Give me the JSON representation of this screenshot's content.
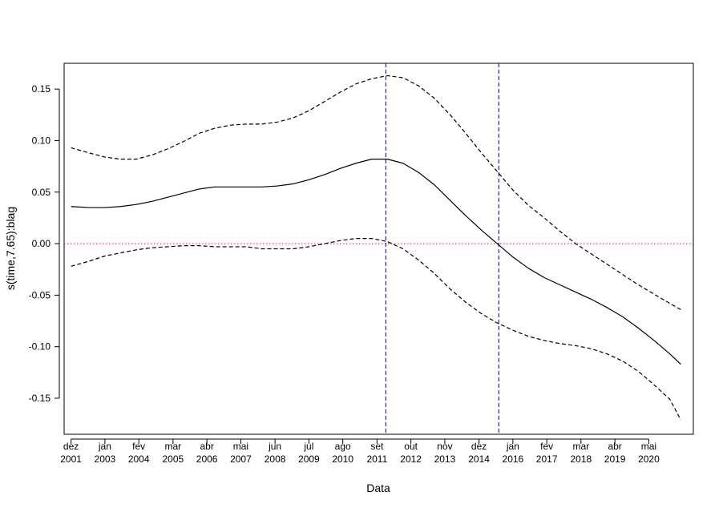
{
  "chart_data": {
    "type": "line",
    "xlabel": "Data",
    "ylabel": "s(time,7.65):blag",
    "xlim": [
      2001.7,
      2021.75
    ],
    "ylim": [
      -0.185,
      0.175
    ],
    "y_ticks": [
      0.15,
      0.1,
      0.05,
      0.0,
      -0.05,
      -0.1,
      -0.15
    ],
    "y_tick_labels": [
      "0.15",
      "0.10",
      "0.05",
      "0.00",
      "-0.05",
      "-0.10",
      "-0.15"
    ],
    "x_ticks": [
      {
        "value": 2001.92,
        "month": "dez",
        "year": "2001"
      },
      {
        "value": 2003.0,
        "month": "jan",
        "year": "2003"
      },
      {
        "value": 2004.08,
        "month": "fev",
        "year": "2004"
      },
      {
        "value": 2005.17,
        "month": "mar",
        "year": "2005"
      },
      {
        "value": 2006.25,
        "month": "abr",
        "year": "2006"
      },
      {
        "value": 2007.33,
        "month": "mai",
        "year": "2007"
      },
      {
        "value": 2008.42,
        "month": "jun",
        "year": "2008"
      },
      {
        "value": 2009.5,
        "month": "jul",
        "year": "2009"
      },
      {
        "value": 2010.58,
        "month": "ago",
        "year": "2010"
      },
      {
        "value": 2011.67,
        "month": "set",
        "year": "2011"
      },
      {
        "value": 2012.75,
        "month": "out",
        "year": "2012"
      },
      {
        "value": 2013.83,
        "month": "nov",
        "year": "2013"
      },
      {
        "value": 2014.92,
        "month": "dez",
        "year": "2014"
      },
      {
        "value": 2016.0,
        "month": "jan",
        "year": "2016"
      },
      {
        "value": 2017.08,
        "month": "fev",
        "year": "2017"
      },
      {
        "value": 2018.17,
        "month": "mar",
        "year": "2018"
      },
      {
        "value": 2019.25,
        "month": "abr",
        "year": "2019"
      },
      {
        "value": 2020.33,
        "month": "mai",
        "year": "2020"
      }
    ],
    "reference_lines": {
      "horizontal": {
        "y": 0.0,
        "color": "#ff0000",
        "style": "dotted"
      },
      "vertical": [
        {
          "x": 2011.95,
          "color": "#00008b",
          "style": "dashed"
        },
        {
          "x": 2015.55,
          "color": "#00008b",
          "style": "dashed"
        }
      ]
    },
    "series": [
      {
        "style": "solid",
        "color": "#000000",
        "x": [
          2001.92,
          2002.5,
          2003.0,
          2003.5,
          2004.0,
          2004.5,
          2005.0,
          2005.5,
          2006.0,
          2006.5,
          2007.0,
          2007.5,
          2008.0,
          2008.5,
          2009.0,
          2009.5,
          2010.0,
          2010.5,
          2011.0,
          2011.5,
          2012.0,
          2012.5,
          2013.0,
          2013.5,
          2014.0,
          2014.5,
          2015.0,
          2015.5,
          2016.0,
          2016.5,
          2017.0,
          2017.5,
          2018.0,
          2018.5,
          2019.0,
          2019.5,
          2020.0,
          2020.5,
          2021.0,
          2021.35
        ],
        "values": [
          0.036,
          0.035,
          0.035,
          0.036,
          0.038,
          0.041,
          0.045,
          0.049,
          0.053,
          0.055,
          0.055,
          0.055,
          0.055,
          0.056,
          0.058,
          0.062,
          0.067,
          0.073,
          0.078,
          0.082,
          0.082,
          0.078,
          0.069,
          0.057,
          0.042,
          0.027,
          0.013,
          0.0,
          -0.013,
          -0.024,
          -0.033,
          -0.04,
          -0.047,
          -0.054,
          -0.062,
          -0.071,
          -0.082,
          -0.094,
          -0.107,
          -0.117
        ]
      },
      {
        "style": "dashed",
        "color": "#000000",
        "x": [
          2001.92,
          2002.5,
          2003.0,
          2003.5,
          2004.0,
          2004.5,
          2005.0,
          2005.5,
          2006.0,
          2006.5,
          2007.0,
          2007.5,
          2008.0,
          2008.5,
          2009.0,
          2009.5,
          2010.0,
          2010.5,
          2011.0,
          2011.5,
          2012.0,
          2012.5,
          2013.0,
          2013.5,
          2014.0,
          2014.5,
          2015.0,
          2015.5,
          2016.0,
          2016.5,
          2017.0,
          2017.5,
          2018.0,
          2018.5,
          2019.0,
          2019.5,
          2020.0,
          2020.5,
          2021.0,
          2021.35
        ],
        "values": [
          0.093,
          0.088,
          0.084,
          0.082,
          0.082,
          0.086,
          0.092,
          0.099,
          0.107,
          0.112,
          0.115,
          0.116,
          0.116,
          0.118,
          0.122,
          0.129,
          0.138,
          0.147,
          0.155,
          0.16,
          0.163,
          0.161,
          0.153,
          0.141,
          0.125,
          0.107,
          0.088,
          0.07,
          0.052,
          0.037,
          0.025,
          0.012,
          0.0,
          -0.01,
          -0.02,
          -0.03,
          -0.04,
          -0.049,
          -0.058,
          -0.064
        ]
      },
      {
        "style": "dashed",
        "color": "#000000",
        "x": [
          2001.92,
          2002.5,
          2003.0,
          2003.5,
          2004.0,
          2004.5,
          2005.0,
          2005.5,
          2006.0,
          2006.5,
          2007.0,
          2007.5,
          2008.0,
          2008.5,
          2009.0,
          2009.5,
          2010.0,
          2010.5,
          2011.0,
          2011.5,
          2012.0,
          2012.5,
          2013.0,
          2013.5,
          2014.0,
          2014.5,
          2015.0,
          2015.5,
          2016.0,
          2016.5,
          2017.0,
          2017.5,
          2018.0,
          2018.5,
          2019.0,
          2019.5,
          2020.0,
          2020.5,
          2021.0,
          2021.35
        ],
        "values": [
          -0.022,
          -0.017,
          -0.012,
          -0.009,
          -0.006,
          -0.004,
          -0.003,
          -0.002,
          -0.002,
          -0.003,
          -0.003,
          -0.003,
          -0.005,
          -0.005,
          -0.005,
          -0.003,
          0.0,
          0.003,
          0.005,
          0.005,
          0.002,
          -0.005,
          -0.016,
          -0.029,
          -0.044,
          -0.057,
          -0.068,
          -0.077,
          -0.084,
          -0.09,
          -0.094,
          -0.097,
          -0.099,
          -0.102,
          -0.107,
          -0.114,
          -0.124,
          -0.137,
          -0.151,
          -0.171
        ]
      }
    ]
  }
}
